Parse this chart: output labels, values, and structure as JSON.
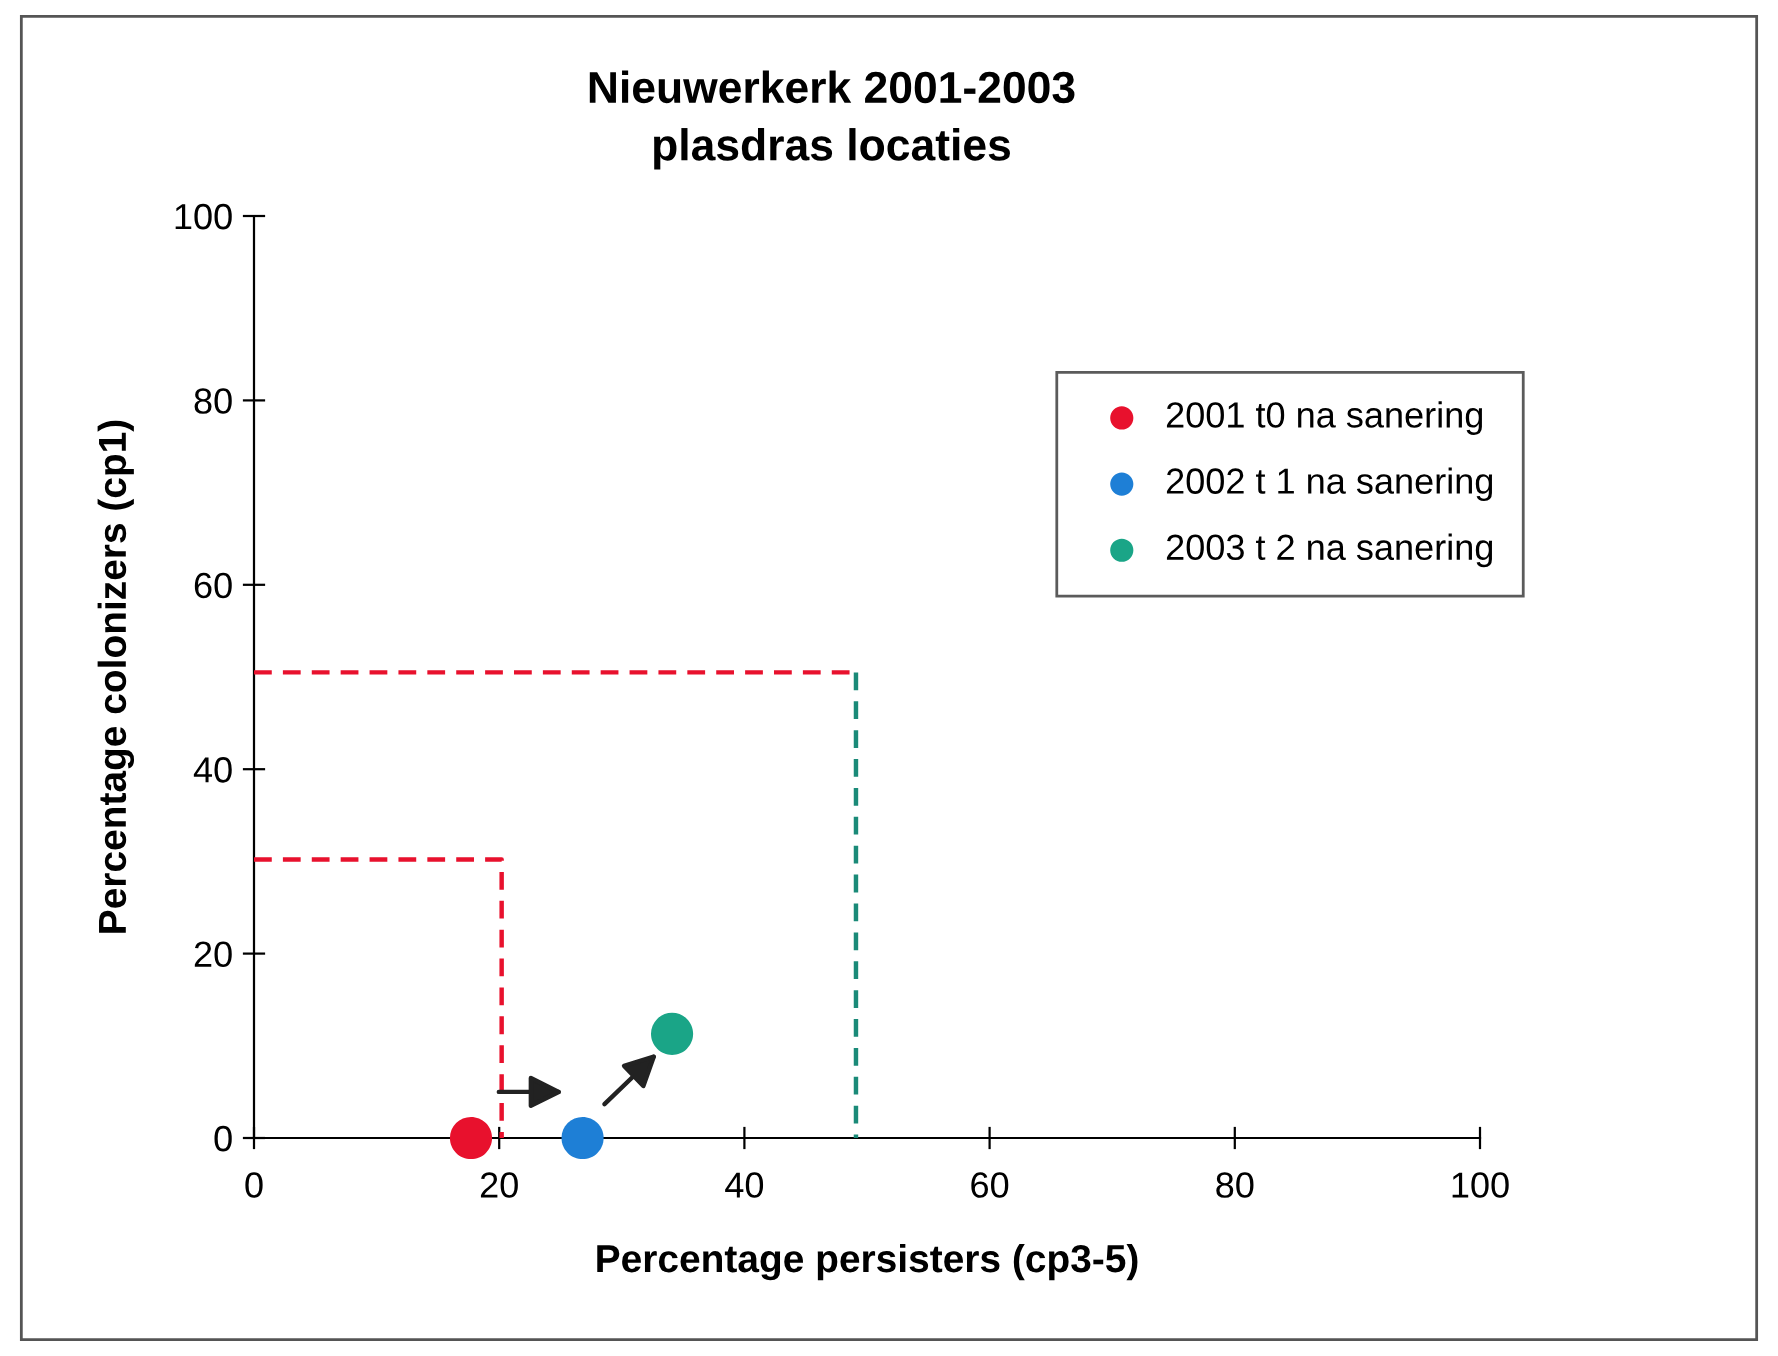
{
  "chart_data": {
    "type": "scatter",
    "title": "Nieuwerkerk 2001-2003\nplasdras locaties",
    "xlabel": "Percentage persisters (cp3-5)",
    "ylabel": "Percentage colonizers (cp1)",
    "xlim": [
      0,
      100
    ],
    "ylim": [
      0,
      100
    ],
    "xticks": [
      0,
      20,
      40,
      60,
      80,
      100
    ],
    "yticks": [
      0,
      20,
      40,
      60,
      80,
      100
    ],
    "grid": false,
    "legend": "top right",
    "marker": "circle",
    "series": [
      {
        "name": "2001 t0 na sanering",
        "color": "#e8112d",
        "x": [
          17.7
        ],
        "values": [
          0
        ]
      },
      {
        "name": "2002 t 1 na sanering",
        "color": "#1e7fd6",
        "x": [
          26.8
        ],
        "values": [
          0
        ]
      },
      {
        "name": "2003 t 2 na sanering",
        "color": "#1aa587",
        "x": [
          34.1
        ],
        "values": [
          11.3
        ]
      },
      {
        "type": "line",
        "color": "#e8112d",
        "line_style": "dashed",
        "marker": "none",
        "x": [
          0,
          20.2,
          20.2
        ],
        "values": [
          30.2,
          30.2,
          0
        ]
      },
      {
        "type": "line",
        "color": "#e8112d",
        "line_style": "dashed",
        "marker": "none",
        "x": [
          0,
          49.1
        ],
        "values": [
          50.5,
          50.5
        ]
      },
      {
        "type": "line",
        "color": "#1a8a78",
        "line_style": "dashed",
        "marker": "none",
        "x": [
          49.1,
          49.1
        ],
        "values": [
          50.5,
          0
        ]
      }
    ]
  }
}
